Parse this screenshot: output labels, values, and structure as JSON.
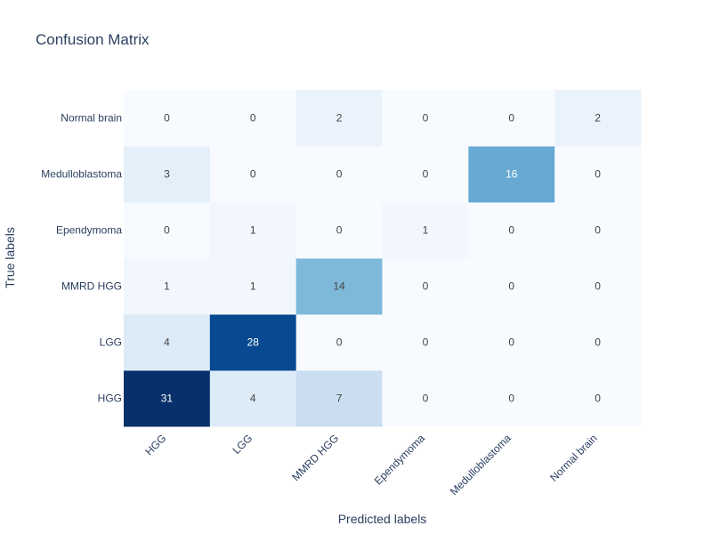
{
  "chart_data": {
    "type": "heatmap",
    "title": "Confusion Matrix",
    "xlabel": "Predicted labels",
    "ylabel": "True labels",
    "x_categories": [
      "HGG",
      "LGG",
      "MMRD HGG",
      "Ependymoma",
      "Medulloblastoma",
      "Normal brain"
    ],
    "y_categories": [
      "HGG",
      "LGG",
      "MMRD HGG",
      "Ependymoma",
      "Medulloblastoma",
      "Normal brain"
    ],
    "values": [
      [
        31,
        4,
        7,
        0,
        0,
        0
      ],
      [
        4,
        28,
        0,
        0,
        0,
        0
      ],
      [
        1,
        1,
        14,
        0,
        0,
        0
      ],
      [
        0,
        1,
        0,
        1,
        0,
        0
      ],
      [
        3,
        0,
        0,
        0,
        16,
        0
      ],
      [
        0,
        0,
        2,
        0,
        0,
        2
      ]
    ],
    "colorscale": "Blues",
    "colorscale_low": "#f7fbff",
    "colorscale_high": "#08306b",
    "text_color_dark": "#444444",
    "text_color_light": "#ffffff"
  }
}
